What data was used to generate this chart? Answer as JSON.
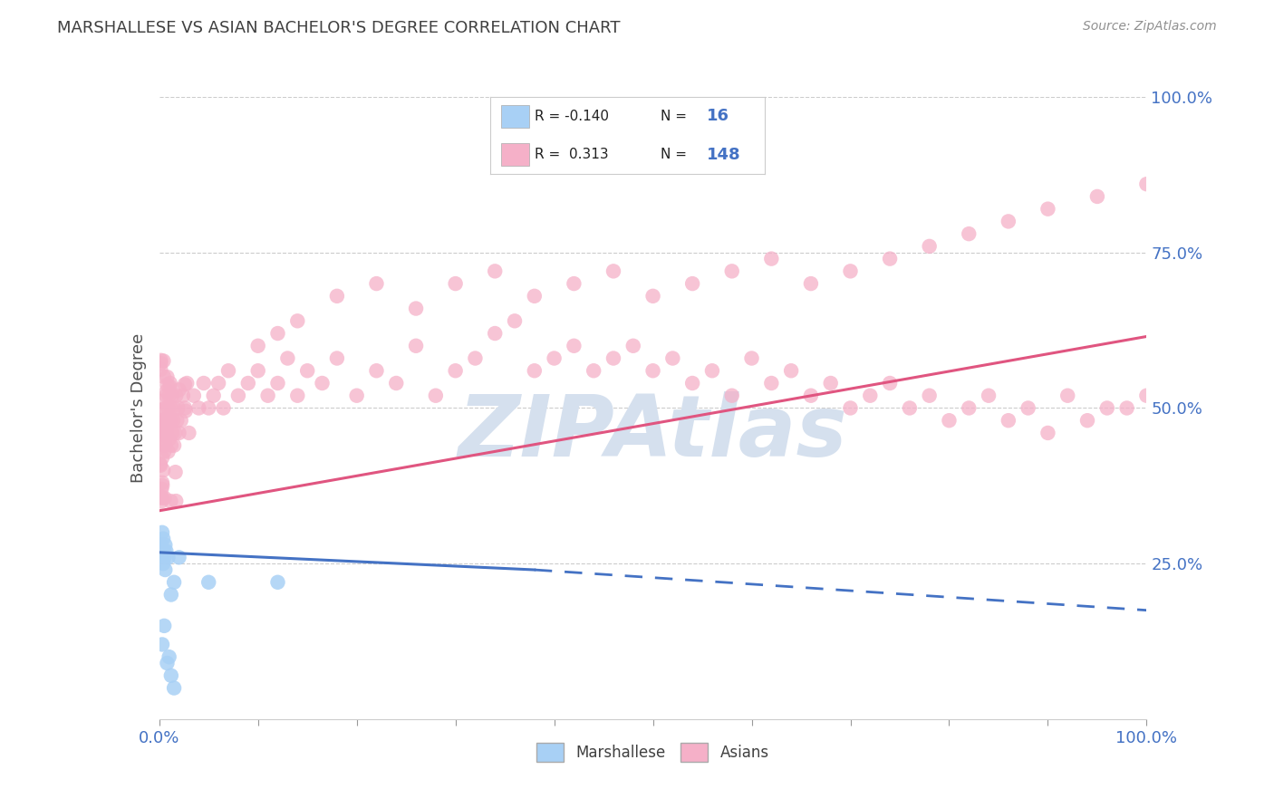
{
  "title": "MARSHALLESE VS ASIAN BACHELOR'S DEGREE CORRELATION CHART",
  "source": "Source: ZipAtlas.com",
  "ylabel": "Bachelor's Degree",
  "watermark": "ZIPAtlas",
  "legend_blue_label": "Marshallese",
  "legend_pink_label": "Asians",
  "R_blue": -0.14,
  "N_blue": 16,
  "R_pink": 0.313,
  "N_pink": 148,
  "blue_color": "#a8d0f5",
  "pink_color": "#f5b0c8",
  "trend_blue_color": "#4472c4",
  "trend_pink_color": "#e05580",
  "background_color": "#ffffff",
  "grid_color": "#cccccc",
  "title_color": "#404040",
  "source_color": "#909090",
  "axis_tick_color": "#4472c4",
  "watermark_color": "#d5e0ee",
  "blue_points_x": [
    0.002,
    0.003,
    0.003,
    0.004,
    0.004,
    0.005,
    0.005,
    0.006,
    0.006,
    0.007,
    0.009,
    0.012,
    0.015,
    0.02,
    0.05,
    0.12
  ],
  "blue_points_y": [
    0.28,
    0.3,
    0.27,
    0.29,
    0.25,
    0.27,
    0.26,
    0.28,
    0.24,
    0.27,
    0.26,
    0.2,
    0.22,
    0.26,
    0.22,
    0.22
  ],
  "blue_outlier_x": [
    0.003,
    0.005,
    0.008,
    0.01,
    0.012,
    0.015
  ],
  "blue_outlier_y": [
    0.12,
    0.15,
    0.09,
    0.1,
    0.07,
    0.05
  ],
  "pink_cluster_x": [
    0.002,
    0.003,
    0.003,
    0.004,
    0.004,
    0.005,
    0.005,
    0.006,
    0.006,
    0.007,
    0.007,
    0.008,
    0.008,
    0.009,
    0.009,
    0.01,
    0.01,
    0.011,
    0.011,
    0.012,
    0.012,
    0.013,
    0.013,
    0.014,
    0.015,
    0.015,
    0.016,
    0.017,
    0.018,
    0.019,
    0.02,
    0.022,
    0.024,
    0.026,
    0.028,
    0.03,
    0.035,
    0.04,
    0.045,
    0.05
  ],
  "pink_cluster_y": [
    0.35,
    0.38,
    0.42,
    0.45,
    0.4,
    0.43,
    0.48,
    0.44,
    0.5,
    0.46,
    0.52,
    0.47,
    0.55,
    0.43,
    0.5,
    0.45,
    0.52,
    0.48,
    0.54,
    0.44,
    0.5,
    0.46,
    0.52,
    0.48,
    0.44,
    0.5,
    0.46,
    0.52,
    0.48,
    0.5,
    0.46,
    0.48,
    0.52,
    0.5,
    0.54,
    0.46,
    0.52,
    0.5,
    0.54,
    0.5
  ],
  "pink_spread_x": [
    0.055,
    0.06,
    0.065,
    0.07,
    0.08,
    0.09,
    0.1,
    0.11,
    0.12,
    0.13,
    0.14,
    0.15,
    0.165,
    0.18,
    0.2,
    0.22,
    0.24,
    0.26,
    0.28,
    0.3,
    0.32,
    0.34,
    0.36,
    0.38,
    0.4,
    0.42,
    0.44,
    0.46,
    0.48,
    0.5,
    0.52,
    0.54,
    0.56,
    0.58,
    0.6,
    0.62,
    0.64,
    0.66,
    0.68,
    0.7,
    0.72,
    0.74,
    0.76,
    0.78,
    0.8,
    0.82,
    0.84,
    0.86,
    0.88,
    0.9,
    0.92,
    0.94,
    0.96,
    0.98,
    1.0
  ],
  "pink_spread_y": [
    0.52,
    0.54,
    0.5,
    0.56,
    0.52,
    0.54,
    0.56,
    0.52,
    0.54,
    0.58,
    0.52,
    0.56,
    0.54,
    0.58,
    0.52,
    0.56,
    0.54,
    0.6,
    0.52,
    0.56,
    0.58,
    0.62,
    0.64,
    0.56,
    0.58,
    0.6,
    0.56,
    0.58,
    0.6,
    0.56,
    0.58,
    0.54,
    0.56,
    0.52,
    0.58,
    0.54,
    0.56,
    0.52,
    0.54,
    0.5,
    0.52,
    0.54,
    0.5,
    0.52,
    0.48,
    0.5,
    0.52,
    0.48,
    0.5,
    0.46,
    0.52,
    0.48,
    0.5,
    0.5,
    0.52
  ],
  "pink_high_x": [
    0.1,
    0.12,
    0.14,
    0.18,
    0.22,
    0.26,
    0.3,
    0.34,
    0.38,
    0.42,
    0.46,
    0.5,
    0.54,
    0.58,
    0.62,
    0.66,
    0.7,
    0.74,
    0.78,
    0.82,
    0.86,
    0.9,
    0.95,
    1.0
  ],
  "pink_high_y": [
    0.6,
    0.62,
    0.64,
    0.68,
    0.7,
    0.66,
    0.7,
    0.72,
    0.68,
    0.7,
    0.72,
    0.68,
    0.7,
    0.72,
    0.74,
    0.7,
    0.72,
    0.74,
    0.76,
    0.78,
    0.8,
    0.82,
    0.84,
    0.86
  ],
  "blue_trend_x0": 0.0,
  "blue_trend_x_solid_end": 0.38,
  "blue_trend_x1": 1.0,
  "blue_trend_y0": 0.268,
  "blue_trend_y_solid_end": 0.24,
  "blue_trend_y1": 0.175,
  "pink_trend_x0": 0.0,
  "pink_trend_x1": 1.0,
  "pink_trend_y0": 0.335,
  "pink_trend_y1": 0.615,
  "xlim": [
    0.0,
    1.0
  ],
  "ylim": [
    0.0,
    1.0
  ],
  "ytick_positions": [
    0.25,
    0.5,
    0.75,
    1.0
  ],
  "ytick_labels": [
    "25.0%",
    "50.0%",
    "75.0%",
    "100.0%"
  ],
  "title_fontsize": 13,
  "source_fontsize": 10,
  "axis_fontsize": 13,
  "legend_fontsize": 12
}
